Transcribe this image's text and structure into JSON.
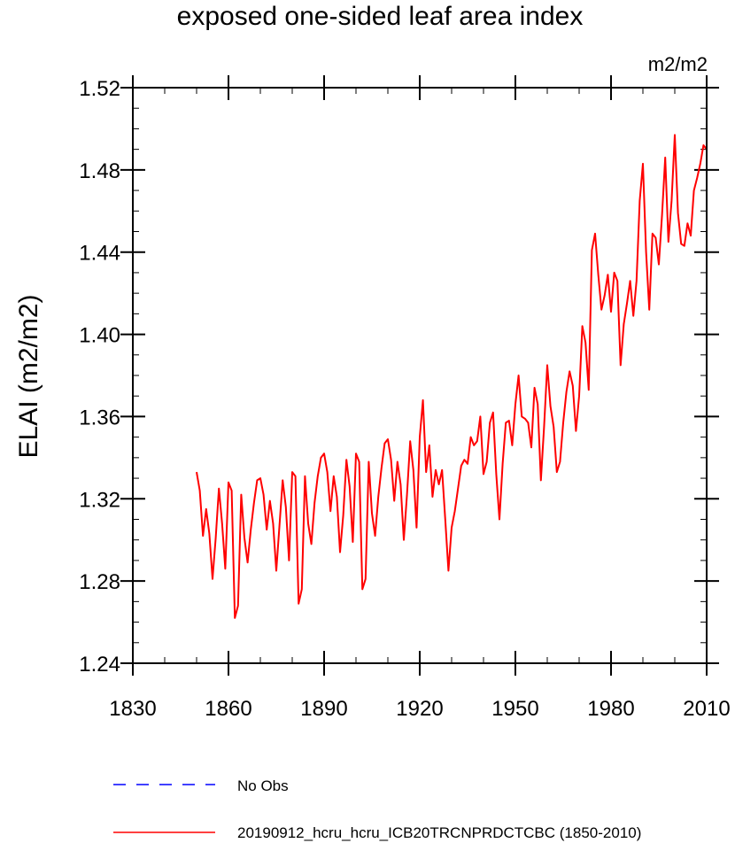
{
  "chart_data": {
    "type": "line",
    "title": "exposed one-sided leaf area index",
    "units": "m2/m2",
    "ylabel": "ELAI  (m2/m2)",
    "xlabel": "",
    "xlim": [
      1830,
      2010
    ],
    "ylim": [
      1.24,
      1.52
    ],
    "x_ticks": [
      1830,
      1860,
      1890,
      1920,
      1950,
      1980,
      2010
    ],
    "x_tick_labels": [
      "1830",
      "1860",
      "1890",
      "1920",
      "1950",
      "1980",
      "2010"
    ],
    "y_ticks": [
      1.24,
      1.28,
      1.32,
      1.36,
      1.4,
      1.44,
      1.48,
      1.52
    ],
    "y_tick_labels": [
      "1.24",
      "1.28",
      "1.32",
      "1.36",
      "1.40",
      "1.44",
      "1.48",
      "1.52"
    ],
    "legend": [
      {
        "label": "No Obs",
        "color": "#0000ff",
        "style": "dashed"
      },
      {
        "label": "20190912_hcru_hcru_ICB20TRCNPRDCTCBC (1850-2010)",
        "color": "#ff0000",
        "style": "solid"
      }
    ],
    "series": [
      {
        "name": "20190912_hcru_hcru_ICB20TRCNPRDCTCBC (1850-2010)",
        "color": "#ff0000",
        "x_start": 1850,
        "x_step": 1,
        "values": [
          1.333,
          1.324,
          1.302,
          1.315,
          1.303,
          1.281,
          1.301,
          1.325,
          1.308,
          1.286,
          1.328,
          1.324,
          1.262,
          1.268,
          1.322,
          1.301,
          1.289,
          1.305,
          1.318,
          1.329,
          1.33,
          1.322,
          1.305,
          1.319,
          1.308,
          1.285,
          1.307,
          1.329,
          1.316,
          1.29,
          1.333,
          1.331,
          1.269,
          1.276,
          1.331,
          1.308,
          1.298,
          1.318,
          1.331,
          1.34,
          1.342,
          1.333,
          1.314,
          1.331,
          1.321,
          1.294,
          1.312,
          1.339,
          1.326,
          1.299,
          1.342,
          1.338,
          1.276,
          1.281,
          1.338,
          1.313,
          1.302,
          1.321,
          1.335,
          1.347,
          1.349,
          1.339,
          1.319,
          1.338,
          1.327,
          1.3,
          1.322,
          1.348,
          1.334,
          1.306,
          1.35,
          1.368,
          1.333,
          1.346,
          1.321,
          1.334,
          1.327,
          1.334,
          1.31,
          1.285,
          1.306,
          1.314,
          1.325,
          1.336,
          1.339,
          1.337,
          1.35,
          1.346,
          1.348,
          1.36,
          1.332,
          1.338,
          1.357,
          1.362,
          1.332,
          1.31,
          1.337,
          1.357,
          1.358,
          1.346,
          1.366,
          1.38,
          1.36,
          1.359,
          1.357,
          1.345,
          1.374,
          1.366,
          1.329,
          1.355,
          1.385,
          1.365,
          1.355,
          1.333,
          1.338,
          1.357,
          1.372,
          1.382,
          1.375,
          1.353,
          1.37,
          1.404,
          1.396,
          1.373,
          1.441,
          1.449,
          1.429,
          1.412,
          1.419,
          1.429,
          1.411,
          1.43,
          1.426,
          1.385,
          1.405,
          1.415,
          1.426,
          1.409,
          1.426,
          1.465,
          1.483,
          1.44,
          1.412,
          1.449,
          1.447,
          1.434,
          1.458,
          1.486,
          1.445,
          1.465,
          1.497,
          1.459,
          1.444,
          1.443,
          1.454,
          1.448,
          1.47,
          1.476,
          1.483,
          1.492,
          1.49
        ]
      }
    ]
  }
}
